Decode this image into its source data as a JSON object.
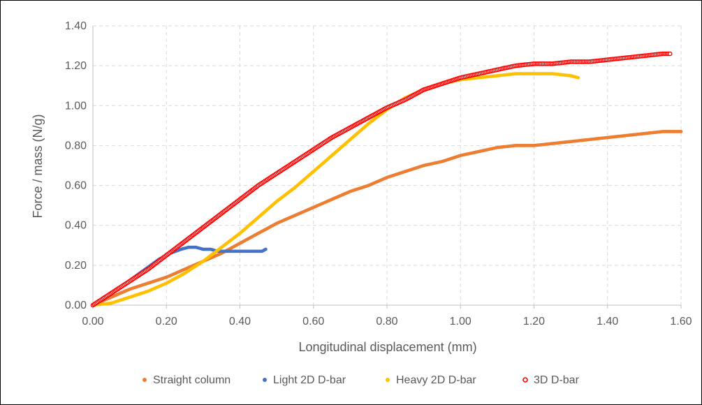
{
  "chart_data": {
    "type": "scatter",
    "title": "",
    "xlabel": "Longitudinal displacement (mm)",
    "ylabel": "Force / mass (N/g)",
    "xlim": [
      0,
      1.6
    ],
    "ylim": [
      0,
      1.4
    ],
    "x_ticks": [
      "0.00",
      "0.20",
      "0.40",
      "0.60",
      "0.80",
      "1.00",
      "1.20",
      "1.40",
      "1.60"
    ],
    "y_ticks": [
      "0.00",
      "0.20",
      "0.40",
      "0.60",
      "0.80",
      "1.00",
      "1.20",
      "1.40"
    ],
    "grid": true,
    "legend_position": "bottom",
    "series": [
      {
        "name": "Straight column",
        "color": "#ED7D31",
        "marker": "filled-circle",
        "points": [
          [
            0.0,
            0.0
          ],
          [
            0.05,
            0.04
          ],
          [
            0.1,
            0.08
          ],
          [
            0.15,
            0.11
          ],
          [
            0.2,
            0.14
          ],
          [
            0.25,
            0.18
          ],
          [
            0.3,
            0.22
          ],
          [
            0.35,
            0.26
          ],
          [
            0.4,
            0.31
          ],
          [
            0.45,
            0.36
          ],
          [
            0.5,
            0.41
          ],
          [
            0.55,
            0.45
          ],
          [
            0.6,
            0.49
          ],
          [
            0.65,
            0.53
          ],
          [
            0.7,
            0.57
          ],
          [
            0.75,
            0.6
          ],
          [
            0.8,
            0.64
          ],
          [
            0.85,
            0.67
          ],
          [
            0.9,
            0.7
          ],
          [
            0.95,
            0.72
          ],
          [
            1.0,
            0.75
          ],
          [
            1.05,
            0.77
          ],
          [
            1.1,
            0.79
          ],
          [
            1.15,
            0.8
          ],
          [
            1.2,
            0.8
          ],
          [
            1.25,
            0.81
          ],
          [
            1.3,
            0.82
          ],
          [
            1.35,
            0.83
          ],
          [
            1.4,
            0.84
          ],
          [
            1.45,
            0.85
          ],
          [
            1.5,
            0.86
          ],
          [
            1.55,
            0.87
          ],
          [
            1.6,
            0.87
          ]
        ]
      },
      {
        "name": "Light 2D D-bar",
        "color": "#4472C4",
        "marker": "filled-circle",
        "points": [
          [
            0.0,
            0.0
          ],
          [
            0.03,
            0.03
          ],
          [
            0.06,
            0.07
          ],
          [
            0.09,
            0.11
          ],
          [
            0.12,
            0.15
          ],
          [
            0.15,
            0.19
          ],
          [
            0.18,
            0.23
          ],
          [
            0.21,
            0.26
          ],
          [
            0.24,
            0.28
          ],
          [
            0.26,
            0.29
          ],
          [
            0.28,
            0.29
          ],
          [
            0.3,
            0.28
          ],
          [
            0.32,
            0.28
          ],
          [
            0.34,
            0.27
          ],
          [
            0.36,
            0.27
          ],
          [
            0.38,
            0.27
          ],
          [
            0.4,
            0.27
          ],
          [
            0.42,
            0.27
          ],
          [
            0.44,
            0.27
          ],
          [
            0.46,
            0.27
          ],
          [
            0.47,
            0.28
          ]
        ]
      },
      {
        "name": "Heavy 2D D-bar",
        "color": "#FFC000",
        "marker": "filled-circle",
        "points": [
          [
            0.0,
            0.0
          ],
          [
            0.05,
            0.01
          ],
          [
            0.1,
            0.04
          ],
          [
            0.15,
            0.07
          ],
          [
            0.2,
            0.11
          ],
          [
            0.25,
            0.16
          ],
          [
            0.3,
            0.22
          ],
          [
            0.35,
            0.29
          ],
          [
            0.4,
            0.36
          ],
          [
            0.45,
            0.44
          ],
          [
            0.5,
            0.52
          ],
          [
            0.55,
            0.59
          ],
          [
            0.6,
            0.67
          ],
          [
            0.65,
            0.75
          ],
          [
            0.7,
            0.83
          ],
          [
            0.75,
            0.91
          ],
          [
            0.8,
            0.98
          ],
          [
            0.85,
            1.04
          ],
          [
            0.9,
            1.08
          ],
          [
            0.95,
            1.11
          ],
          [
            1.0,
            1.13
          ],
          [
            1.05,
            1.14
          ],
          [
            1.1,
            1.15
          ],
          [
            1.15,
            1.16
          ],
          [
            1.2,
            1.16
          ],
          [
            1.25,
            1.16
          ],
          [
            1.3,
            1.15
          ],
          [
            1.32,
            1.14
          ]
        ]
      },
      {
        "name": "3D D-bar",
        "color": "#FF0000",
        "marker": "open-circle",
        "points": [
          [
            0.0,
            0.0
          ],
          [
            0.05,
            0.06
          ],
          [
            0.1,
            0.12
          ],
          [
            0.15,
            0.18
          ],
          [
            0.2,
            0.25
          ],
          [
            0.25,
            0.32
          ],
          [
            0.3,
            0.39
          ],
          [
            0.35,
            0.46
          ],
          [
            0.4,
            0.53
          ],
          [
            0.45,
            0.6
          ],
          [
            0.5,
            0.66
          ],
          [
            0.55,
            0.72
          ],
          [
            0.6,
            0.78
          ],
          [
            0.65,
            0.84
          ],
          [
            0.7,
            0.89
          ],
          [
            0.75,
            0.94
          ],
          [
            0.8,
            0.99
          ],
          [
            0.85,
            1.03
          ],
          [
            0.9,
            1.08
          ],
          [
            0.95,
            1.11
          ],
          [
            1.0,
            1.14
          ],
          [
            1.05,
            1.16
          ],
          [
            1.1,
            1.18
          ],
          [
            1.15,
            1.2
          ],
          [
            1.2,
            1.21
          ],
          [
            1.25,
            1.21
          ],
          [
            1.3,
            1.22
          ],
          [
            1.35,
            1.22
          ],
          [
            1.4,
            1.23
          ],
          [
            1.45,
            1.24
          ],
          [
            1.5,
            1.25
          ],
          [
            1.55,
            1.26
          ],
          [
            1.57,
            1.26
          ]
        ]
      }
    ]
  }
}
